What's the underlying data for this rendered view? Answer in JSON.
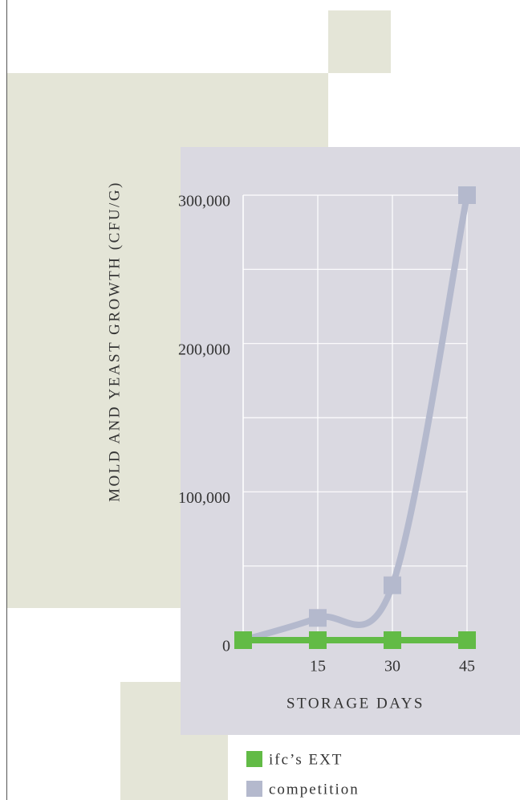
{
  "chart_data": {
    "type": "line",
    "x": [
      0,
      15,
      30,
      45
    ],
    "series": [
      {
        "name": "ifc’s EXT",
        "color": "#62bb46",
        "values": [
          0,
          0,
          0,
          0
        ]
      },
      {
        "name": "competition",
        "color": "#b4b9cd",
        "values": [
          0,
          15000,
          37000,
          300000
        ]
      }
    ],
    "xlabel": "STORAGE DAYS",
    "ylabel": "MOLD AND YEAST GROWTH (CFU/G)",
    "xlim": [
      0,
      45
    ],
    "xticks": [
      15,
      30,
      45
    ],
    "ylim": [
      0,
      300000
    ],
    "yticks": [
      0,
      {
        "value": 100000,
        "label": "100,000"
      },
      {
        "value": 200000,
        "label": "200,000"
      },
      {
        "value": 300000,
        "label": "300,000"
      }
    ],
    "minor_yticks": [
      50000,
      150000,
      250000
    ],
    "grid": true
  }
}
